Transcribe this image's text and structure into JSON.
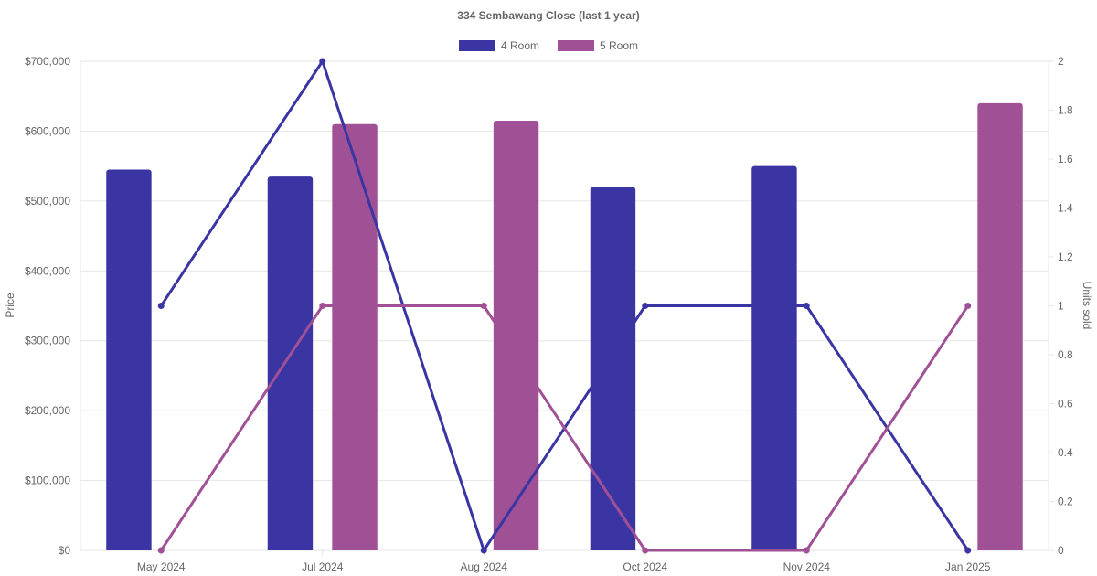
{
  "chart_data": {
    "type": "bar",
    "title": "334 Sembawang Close (last 1 year)",
    "categories": [
      "May 2024",
      "Jul 2024",
      "Aug 2024",
      "Oct 2024",
      "Nov 2024",
      "Jan 2025"
    ],
    "y_left": {
      "label": "Price",
      "ylim": [
        0,
        700000
      ],
      "ticks": [
        "$0",
        "$100,000",
        "$200,000",
        "$300,000",
        "$400,000",
        "$500,000",
        "$600,000",
        "$700,000"
      ]
    },
    "y_right": {
      "label": "Units sold",
      "ylim": [
        0,
        2
      ],
      "ticks": [
        "0",
        "0.2",
        "0.4",
        "0.6",
        "0.8",
        "1",
        "1.2",
        "1.4",
        "1.6",
        "1.8",
        "2"
      ]
    },
    "legend": {
      "placement": "top-center"
    },
    "grid": true,
    "series": [
      {
        "name": "4 Room",
        "color": "#3a35a3",
        "bar_values": [
          545000,
          535000,
          null,
          520000,
          550000,
          null
        ],
        "units_sold": [
          1,
          2,
          0,
          1,
          1,
          0
        ]
      },
      {
        "name": "5 Room",
        "color": "#a05195",
        "bar_values": [
          null,
          610000,
          615000,
          null,
          null,
          640000
        ],
        "units_sold": [
          0,
          1,
          1,
          0,
          0,
          1
        ]
      }
    ]
  }
}
